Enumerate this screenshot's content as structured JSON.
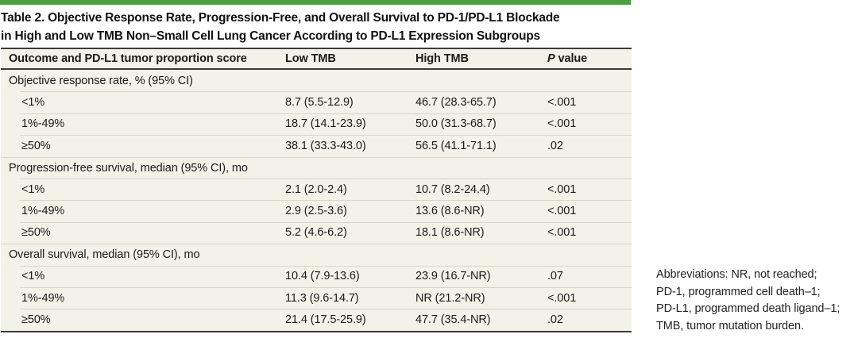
{
  "colors": {
    "accent_green_bar": "#4f9e45",
    "table_background": "#f3f2e9",
    "dark_rule": "#3b3b3b",
    "row_divider": "#d8d6c8",
    "text": "#1a1a1a"
  },
  "title": {
    "line1": "Table 2. Objective Response Rate, Progression-Free, and Overall Survival to PD-1/PD-L1 Blockade",
    "line2": "in High and Low TMB Non–Small Cell Lung Cancer According to PD-L1 Expression Subgroups"
  },
  "table": {
    "columns": {
      "outcome": "Outcome and PD-L1 tumor proportion score",
      "low_tmb": "Low TMB",
      "high_tmb": "High TMB",
      "p_symbol": "P",
      "p_rest": "value"
    },
    "rows": [
      {
        "type": "section",
        "label": "Objective response rate, % (95% CI)"
      },
      {
        "type": "data",
        "label": "<1%",
        "low_tmb": "8.7 (5.5-12.9)",
        "high_tmb": "46.7 (28.3-65.7)",
        "p_value": "<.001"
      },
      {
        "type": "data",
        "label": "1%-49%",
        "low_tmb": "18.7 (14.1-23.9)",
        "high_tmb": "50.0 (31.3-68.7)",
        "p_value": "<.001"
      },
      {
        "type": "data",
        "label": "≥50%",
        "low_tmb": "38.1 (33.3-43.0)",
        "high_tmb": "56.5 (41.1-71.1)",
        "p_value": ".02"
      },
      {
        "type": "section",
        "label": "Progression-free survival, median (95% CI), mo"
      },
      {
        "type": "data",
        "label": "<1%",
        "low_tmb": "2.1 (2.0-2.4)",
        "high_tmb": "10.7 (8.2-24.4)",
        "p_value": "<.001"
      },
      {
        "type": "data",
        "label": "1%-49%",
        "low_tmb": "2.9 (2.5-3.6)",
        "high_tmb": "13.6 (8.6-NR)",
        "p_value": "<.001"
      },
      {
        "type": "data",
        "label": "≥50%",
        "low_tmb": "5.2 (4.6-6.2)",
        "high_tmb": "18.1 (8.6-NR)",
        "p_value": "<.001"
      },
      {
        "type": "section",
        "label": "Overall survival, median (95% CI), mo"
      },
      {
        "type": "data",
        "label": "<1%",
        "low_tmb": "10.4 (7.9-13.6)",
        "high_tmb": "23.9 (16.7-NR)",
        "p_value": ".07"
      },
      {
        "type": "data",
        "label": "1%-49%",
        "low_tmb": "11.3 (9.6-14.7)",
        "high_tmb": "NR (21.2-NR)",
        "p_value": "<.001"
      },
      {
        "type": "data",
        "label": "≥50%",
        "low_tmb": "21.4 (17.5-25.9)",
        "high_tmb": "47.7 (35.4-NR)",
        "p_value": ".02"
      }
    ]
  },
  "footnote": {
    "lines": [
      "Abbreviations: NR, not reached;",
      "PD-1, programmed cell death–1;",
      "PD-L1, programmed death ligand–1;",
      "TMB, tumor mutation burden."
    ]
  }
}
